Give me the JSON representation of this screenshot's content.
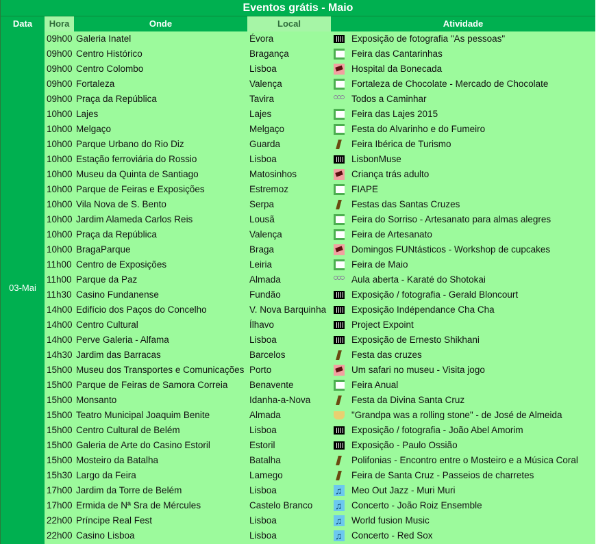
{
  "title": "Eventos grátis - Maio",
  "headers": {
    "data": "Data",
    "hora": "Hora",
    "onde": "Onde",
    "local": "Local",
    "atividade": "Atividade"
  },
  "date": "03-Mai",
  "colors": {
    "header_green": "#00b050",
    "row_bg": "#9cfa9c",
    "header_light": "#a6f5a6"
  },
  "rows": [
    {
      "hora": "09h00",
      "onde": "Galeria Inatel",
      "local": "Évora",
      "icon": "exhibition",
      "atividade": "Exposição de fotografia \"As pessoas\""
    },
    {
      "hora": "09h00",
      "onde": "Centro Histórico",
      "local": "Bragança",
      "icon": "fair",
      "atividade": "Feira das Cantarinhas"
    },
    {
      "hora": "09h00",
      "onde": "Centro Colombo",
      "local": "Lisboa",
      "icon": "kids",
      "atividade": "Hospital da Bonecada"
    },
    {
      "hora": "09h00",
      "onde": "Fortaleza",
      "local": "Valença",
      "icon": "fair",
      "atividade": "Fortaleza de Chocolate - Mercado de Chocolate"
    },
    {
      "hora": "09h00",
      "onde": "Praça da República",
      "local": "Tavira",
      "icon": "sport",
      "atividade": "Todos a Caminhar"
    },
    {
      "hora": "10h00",
      "onde": "Lajes",
      "local": "Lajes",
      "icon": "fair",
      "atividade": "Feira das Lajes 2015"
    },
    {
      "hora": "10h00",
      "onde": "Melgaço",
      "local": "Melgaço",
      "icon": "fair",
      "atividade": "Festa do Alvarinho e do Fumeiro"
    },
    {
      "hora": "10h00",
      "onde": "Parque Urbano do Rio Diz",
      "local": "Guarda",
      "icon": "hike",
      "atividade": "Feira Ibérica de Turismo"
    },
    {
      "hora": "10h00",
      "onde": "Estação ferroviária do Rossio",
      "local": "Lisboa",
      "icon": "exhibition",
      "atividade": "LisbonMuse"
    },
    {
      "hora": "10h00",
      "onde": "Museu da Quinta de Santiago",
      "local": "Matosinhos",
      "icon": "kids",
      "atividade": "Criança trás adulto"
    },
    {
      "hora": "10h00",
      "onde": "Parque de Feiras e Exposições",
      "local": "Estremoz",
      "icon": "fair",
      "atividade": "FIAPE"
    },
    {
      "hora": "10h00",
      "onde": "Vila Nova de S. Bento",
      "local": "Serpa",
      "icon": "hike",
      "atividade": "Festas das Santas Cruzes"
    },
    {
      "hora": "10h00",
      "onde": "Jardim Alameda Carlos Reis",
      "local": "Lousã",
      "icon": "fair",
      "atividade": "Feira do Sorriso - Artesanato para almas alegres"
    },
    {
      "hora": "10h00",
      "onde": "Praça da República",
      "local": "Valença",
      "icon": "fair",
      "atividade": "Feira de Artesanato"
    },
    {
      "hora": "10h00",
      "onde": "BragaParque",
      "local": "Braga",
      "icon": "kids",
      "atividade": "Domingos FUNtásticos - Workshop de cupcakes"
    },
    {
      "hora": "11h00",
      "onde": "Centro de Exposições",
      "local": "Leiria",
      "icon": "fair",
      "atividade": "Feira de Maio"
    },
    {
      "hora": "11h00",
      "onde": "Parque da Paz",
      "local": "Almada",
      "icon": "sport",
      "atividade": "Aula aberta - Karaté do Shotokai"
    },
    {
      "hora": "11h30",
      "onde": "Casino Fundanense",
      "local": "Fundão",
      "icon": "exhibition",
      "atividade": "Exposição / fotografia - Gerald Bloncourt"
    },
    {
      "hora": "14h00",
      "onde": "Edifício dos Paços do Concelho",
      "local": "V. Nova Barquinha",
      "icon": "exhibition",
      "atividade": "Exposição Indépendance Cha Cha"
    },
    {
      "hora": "14h00",
      "onde": "Centro Cultural",
      "local": "Ílhavo",
      "icon": "exhibition",
      "atividade": "Project Expoint"
    },
    {
      "hora": "14h00",
      "onde": "Perve Galeria - Alfama",
      "local": "Lisboa",
      "icon": "exhibition",
      "atividade": "Exposição de Ernesto Shikhani"
    },
    {
      "hora": "14h30",
      "onde": "Jardim das Barracas",
      "local": "Barcelos",
      "icon": "hike",
      "atividade": "Festa das cruzes"
    },
    {
      "hora": "15h00",
      "onde": "Museu dos Transportes e Comunicações",
      "local": "Porto",
      "icon": "kids",
      "atividade": "Um safari no museu - Visita jogo"
    },
    {
      "hora": "15h00",
      "onde": "Parque de Feiras de Samora Correia",
      "local": "Benavente",
      "icon": "fair",
      "atividade": "Feira Anual"
    },
    {
      "hora": "15h00",
      "onde": "Monsanto",
      "local": "Idanha-a-Nova",
      "icon": "hike",
      "atividade": "Festa da Divina Santa Cruz"
    },
    {
      "hora": "15h00",
      "onde": "Teatro Municipal Joaquim Benite",
      "local": "Almada",
      "icon": "theater",
      "atividade": "\"Grandpa was a rolling stone\" - de José de Almeida"
    },
    {
      "hora": "15h00",
      "onde": "Centro Cultural de Belém",
      "local": "Lisboa",
      "icon": "exhibition",
      "atividade": "Exposição / fotografia - João Abel Amorim"
    },
    {
      "hora": "15h00",
      "onde": "Galeria de Arte do Casino Estoril",
      "local": "Estoril",
      "icon": "exhibition",
      "atividade": "Exposição - Paulo Ossião"
    },
    {
      "hora": "15h00",
      "onde": "Mosteiro da Batalha",
      "local": "Batalha",
      "icon": "hike",
      "atividade": "Polifonias - Encontro entre o Mosteiro e a Música Coral"
    },
    {
      "hora": "15h30",
      "onde": "Largo da Feira",
      "local": "Lamego",
      "icon": "hike",
      "atividade": "Feira de Santa Cruz - Passeios de charretes"
    },
    {
      "hora": "17h00",
      "onde": "Jardim da Torre de Belém",
      "local": "Lisboa",
      "icon": "music",
      "atividade": "Meo Out Jazz - Muri Muri"
    },
    {
      "hora": "17h00",
      "onde": "Ermida de Nª Sra de Mércules",
      "local": "Castelo Branco",
      "icon": "music",
      "atividade": "Concerto - João Roiz Ensemble"
    },
    {
      "hora": "22h00",
      "onde": "Príncipe Real Fest",
      "local": "Lisboa",
      "icon": "music",
      "atividade": "World fusion Music"
    },
    {
      "hora": "22h00",
      "onde": "Casino Lisboa",
      "local": "Lisboa",
      "icon": "music",
      "atividade": "Concerto - Red Sox"
    }
  ]
}
